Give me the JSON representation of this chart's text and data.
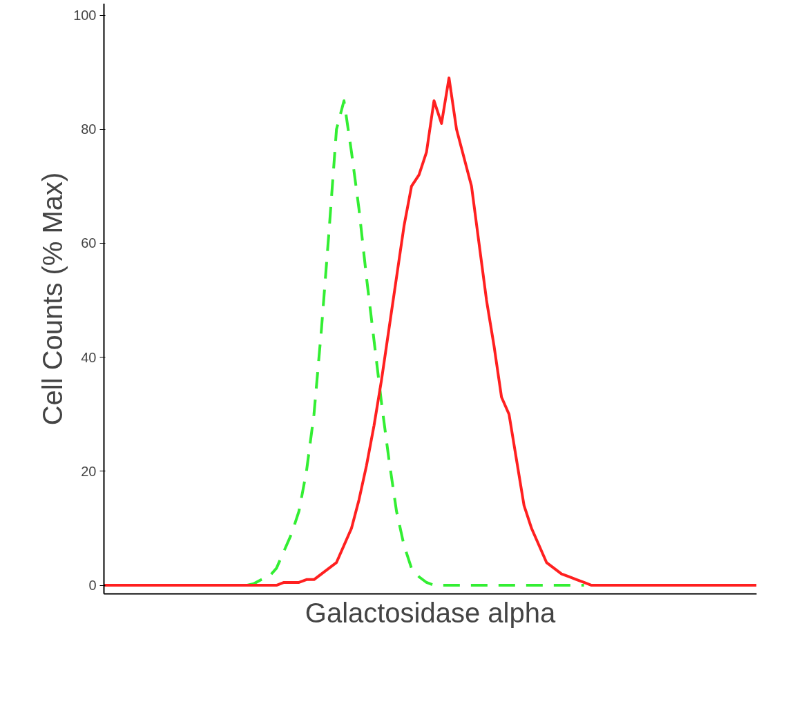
{
  "chart_data": {
    "type": "line",
    "xlabel": "Galactosidase alpha",
    "ylabel": "Cell Counts (% Max)",
    "categories": [
      null,
      null,
      null,
      null,
      null,
      null,
      null,
      null,
      null,
      null,
      null,
      null,
      null,
      null,
      null,
      null,
      null,
      null,
      null,
      null,
      null,
      null,
      null,
      null,
      null,
      null,
      null,
      null,
      null,
      null,
      null,
      null,
      null,
      null,
      null,
      null,
      null,
      null,
      null,
      null,
      null,
      null,
      null,
      null,
      null,
      null,
      null,
      null,
      null,
      null,
      null,
      null,
      null,
      null,
      null,
      null,
      null,
      null,
      null,
      null,
      null,
      null,
      null,
      null,
      null,
      null,
      null,
      null,
      null,
      null,
      null,
      null,
      null,
      null,
      null,
      null,
      null,
      null,
      null,
      null,
      null,
      null,
      null,
      null,
      null,
      null,
      null,
      null
    ],
    "series": [
      {
        "color": "#33ee33",
        "line_style": "dashed",
        "values": [
          null,
          null,
          null,
          null,
          null,
          null,
          null,
          null,
          null,
          null,
          null,
          null,
          null,
          null,
          null,
          null,
          null,
          null,
          null,
          0,
          0.3,
          1,
          1.5,
          3,
          6,
          9,
          13,
          20,
          30,
          45,
          62,
          80,
          85,
          76,
          66,
          54,
          43,
          32,
          22,
          13,
          7,
          3,
          1.5,
          0.5,
          0,
          0,
          0,
          0,
          0,
          0,
          0,
          0,
          0,
          0,
          0,
          0,
          0,
          0,
          0,
          0,
          0,
          0,
          0,
          0,
          0,
          null,
          null,
          null,
          null,
          null,
          null,
          null,
          null,
          null,
          null,
          null,
          null,
          null,
          null,
          null,
          null,
          null,
          null,
          null,
          null,
          null,
          null,
          null
        ]
      },
      {
        "color": "#ff2020",
        "line_style": "solid",
        "values": [
          0,
          0,
          0,
          0,
          0,
          0,
          0,
          0,
          0,
          0,
          0,
          0,
          0,
          0,
          0,
          0,
          0,
          0,
          0,
          0,
          0,
          0,
          0,
          0,
          0.5,
          0.5,
          0.5,
          1,
          1,
          2,
          3,
          4,
          7,
          10,
          15,
          21,
          28,
          36,
          45,
          54,
          63,
          70,
          72,
          76,
          85,
          81,
          89,
          80,
          75,
          70,
          60,
          50,
          42,
          33,
          30,
          22,
          14,
          10,
          7,
          4,
          3,
          2,
          1.5,
          1,
          0.5,
          0,
          0,
          0,
          0,
          0,
          0,
          0,
          0,
          0,
          0,
          0,
          0,
          0,
          0,
          0,
          0,
          0,
          0,
          0,
          0,
          0,
          0,
          0
        ]
      }
    ],
    "ylim": [
      -1.5,
      102
    ],
    "yticks": [
      0,
      20,
      40,
      60,
      80,
      100
    ],
    "grid": false
  }
}
